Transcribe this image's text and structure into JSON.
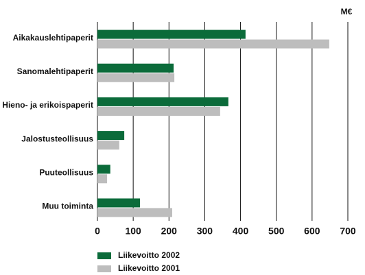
{
  "chart_data": {
    "type": "bar",
    "orientation": "horizontal",
    "unit": "M€",
    "categories": [
      "Aikakauslehtipaperit",
      "Sanomalehtipaperit",
      "Hieno- ja erikoispaperit",
      "Jalostusteollisuus",
      "Puuteollisuus",
      "Muu toiminta"
    ],
    "series": [
      {
        "name": "Liikevoitto 2002",
        "color": "#0b6b3a",
        "values": [
          414,
          213,
          366,
          75,
          36,
          119
        ]
      },
      {
        "name": "Liikevoitto 2001",
        "color": "#bdbdbd",
        "values": [
          648,
          215,
          343,
          61,
          27,
          209
        ]
      }
    ],
    "xlim": [
      0,
      700
    ],
    "xticks": [
      0,
      100,
      200,
      300,
      400,
      500,
      600,
      700
    ],
    "grid": true
  }
}
